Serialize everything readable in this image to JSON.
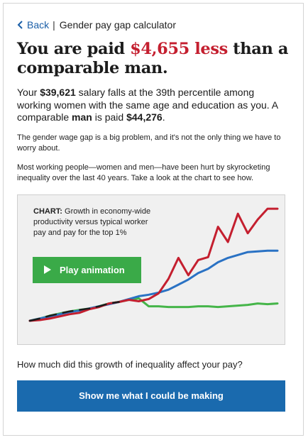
{
  "nav": {
    "back_label": "Back",
    "separator": "|",
    "title": "Gender pay gap calculator"
  },
  "headline": {
    "prefix": "You are paid ",
    "amount": "$4,655 less",
    "suffix": " than a comparable man."
  },
  "lead": {
    "t1": "Your ",
    "salary": "$39,621",
    "t2": " salary falls at the 39th percentile among working women with the same age and education as you. A comparable ",
    "gender": "man",
    "t3": " is paid ",
    "comparable_pay": "$44,276",
    "t4": "."
  },
  "paragraphs": {
    "p1": "The gender wage gap is a big problem, and it's not the only thing we have to worry about.",
    "p2": "Most working people—women and men—have been hurt by skyrocketing inequality over the last 40 years. Take a look at the chart to see how."
  },
  "chart": {
    "caption_label": "CHART:",
    "caption_text": " Growth in economy-wide productivity versus typical worker pay and pay for the top 1%",
    "play_label": "Play animation",
    "play_icon": "play-icon",
    "colors": {
      "productivity": "#2a72c4",
      "typical_pay": "#45b549",
      "top_pay": "#c41f2f",
      "early": "#1c1c1c"
    }
  },
  "chart_data": {
    "type": "line",
    "title": "Growth in economy-wide productivity versus typical worker pay and pay for the top 1%",
    "xlabel": "",
    "ylabel": "",
    "series": [
      {
        "key": "productivity",
        "values": [
          0,
          3,
          6,
          9,
          12,
          14,
          17,
          20,
          23,
          26,
          30,
          34,
          36,
          39,
          43,
          50,
          57,
          66,
          72,
          81,
          87,
          91,
          95,
          96,
          97,
          97
        ]
      },
      {
        "key": "typical_pay",
        "values": [
          0,
          3,
          7,
          10,
          13,
          15,
          17,
          20,
          24,
          26,
          29,
          31,
          20,
          20,
          19,
          19,
          19,
          20,
          20,
          19,
          20,
          21,
          22,
          24,
          23,
          24
        ]
      },
      {
        "key": "top_pay",
        "values": [
          0,
          1,
          3,
          6,
          9,
          11,
          16,
          19,
          24,
          26,
          29,
          27,
          30,
          38,
          58,
          87,
          63,
          84,
          88,
          130,
          109,
          148,
          121,
          140,
          155,
          155
        ]
      }
    ],
    "ylim": [
      0,
      160
    ],
    "grid": false,
    "legend": "none"
  },
  "question": "How much did this growth of inequality affect your pay?",
  "cta_label": "Show me what I could be making"
}
